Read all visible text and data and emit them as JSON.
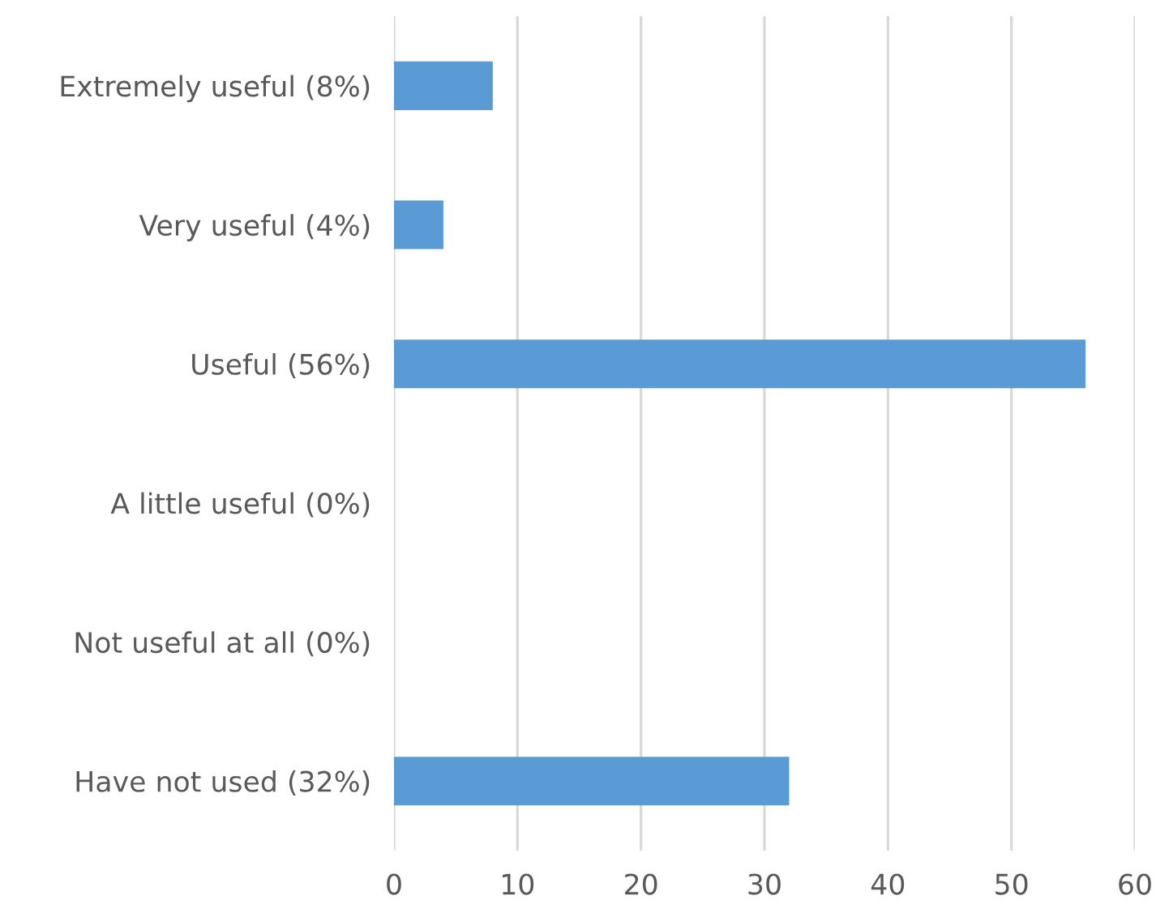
{
  "chart_data": {
    "type": "bar",
    "orientation": "horizontal",
    "categories": [
      "Extremely useful (8%)",
      "Very useful (4%)",
      "Useful (56%)",
      "A little useful (0%)",
      "Not useful at all (0%)",
      "Have not used (32%)"
    ],
    "values": [
      8,
      4,
      56,
      0,
      0,
      32
    ],
    "color": "#5b9bd5",
    "xlim": [
      0,
      60
    ],
    "xticks": [
      0,
      10,
      20,
      30,
      40,
      50,
      60
    ],
    "grid": "x"
  }
}
